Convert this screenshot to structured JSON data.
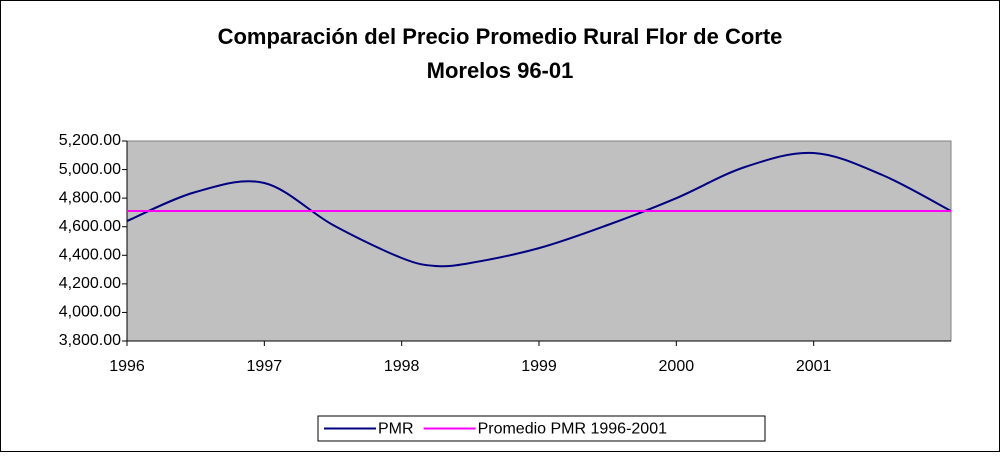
{
  "chart_data": {
    "type": "line",
    "title": [
      "Comparación del Precio Promedio Rural Flor de Corte",
      "Morelos  96-01"
    ],
    "x": [
      1996,
      1996.5,
      1997,
      1997.5,
      1998,
      1998.25,
      1998.5,
      1999,
      1999.5,
      2000,
      2000.5,
      2001,
      2001.5,
      2002
    ],
    "series": [
      {
        "name": "PMR",
        "color": "#000080",
        "values": [
          4640,
          4843,
          4906,
          4612,
          4381,
          4325,
          4346,
          4450,
          4612,
          4800,
          5018,
          5116,
          4962,
          4710
        ]
      },
      {
        "name": "Promedio PMR 1996-2001",
        "color": "#ff00ff",
        "values": [
          4710,
          4710,
          4710,
          4710,
          4710,
          4710,
          4710,
          4710,
          4710,
          4710,
          4710,
          4710,
          4710,
          4710
        ]
      }
    ],
    "xlim": [
      1996,
      2002
    ],
    "xticks": [
      1996,
      1997,
      1998,
      1999,
      2000,
      2001
    ],
    "ylim": [
      3800,
      5200
    ],
    "yticks": [
      {
        "value": 3800,
        "label": "3,800.00"
      },
      {
        "value": 4000,
        "label": "4,000.00"
      },
      {
        "value": 4200,
        "label": "4,200.00"
      },
      {
        "value": 4400,
        "label": "4,400.00"
      },
      {
        "value": 4600,
        "label": "4,600.00"
      },
      {
        "value": 4800,
        "label": "4,800.00"
      },
      {
        "value": 5000,
        "label": "5,000.00"
      },
      {
        "value": 5200,
        "label": "5,200.00"
      }
    ],
    "grid": false,
    "legend": "bottom",
    "smooth": true
  }
}
